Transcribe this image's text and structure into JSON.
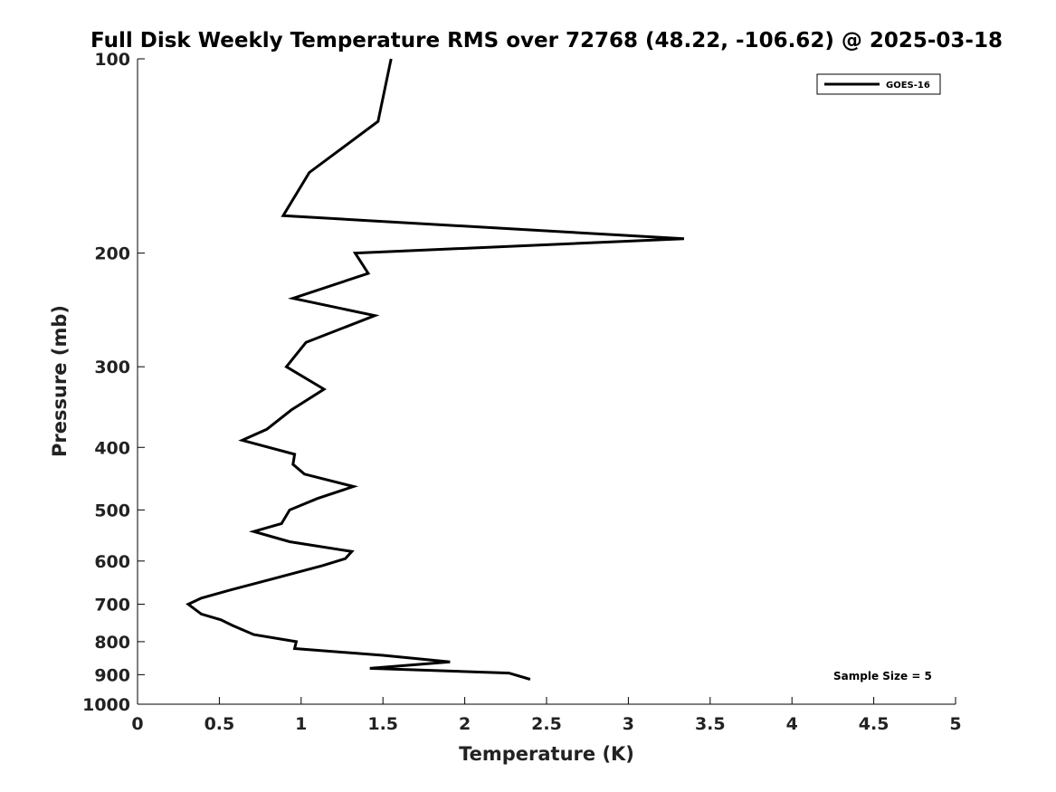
{
  "chart_data": {
    "type": "line",
    "title": "Full Disk Weekly Temperature RMS over 72768 (48.22, -106.62) @ 2025-03-18",
    "xlabel": "Temperature (K)",
    "ylabel": "Pressure (mb)",
    "xlim": [
      0,
      5
    ],
    "ylim": [
      100,
      1000
    ],
    "y_scale": "log",
    "y_reversed": true,
    "x_ticks": [
      "0",
      "0.5",
      "1",
      "1.5",
      "2",
      "2.5",
      "3",
      "3.5",
      "4",
      "4.5",
      "5"
    ],
    "y_ticks": [
      "100",
      "200",
      "300",
      "400",
      "500",
      "600",
      "700",
      "800",
      "900",
      "1000"
    ],
    "grid": false,
    "legend_position": "top-right",
    "series": [
      {
        "name": "GOES-16",
        "color": "#000000",
        "points": [
          [
            1.55,
            100
          ],
          [
            1.47,
            125
          ],
          [
            1.05,
            150
          ],
          [
            0.89,
            175
          ],
          [
            3.34,
            190
          ],
          [
            1.33,
            200
          ],
          [
            1.41,
            215
          ],
          [
            0.95,
            235
          ],
          [
            1.45,
            250
          ],
          [
            1.03,
            275
          ],
          [
            0.91,
            300
          ],
          [
            1.14,
            325
          ],
          [
            0.94,
            350
          ],
          [
            0.79,
            375
          ],
          [
            0.64,
            390
          ],
          [
            0.96,
            410
          ],
          [
            0.95,
            425
          ],
          [
            1.02,
            440
          ],
          [
            1.32,
            460
          ],
          [
            1.1,
            480
          ],
          [
            0.93,
            500
          ],
          [
            0.88,
            525
          ],
          [
            0.71,
            540
          ],
          [
            0.93,
            560
          ],
          [
            1.31,
            580
          ],
          [
            1.27,
            595
          ],
          [
            1.13,
            610
          ],
          [
            0.82,
            640
          ],
          [
            0.57,
            665
          ],
          [
            0.39,
            685
          ],
          [
            0.31,
            700
          ],
          [
            0.39,
            725
          ],
          [
            0.51,
            740
          ],
          [
            0.58,
            755
          ],
          [
            0.71,
            780
          ],
          [
            0.97,
            800
          ],
          [
            0.96,
            820
          ],
          [
            1.5,
            840
          ],
          [
            1.91,
            860
          ],
          [
            1.42,
            880
          ],
          [
            2.27,
            895
          ],
          [
            2.4,
            915
          ]
        ]
      }
    ],
    "annotation": "Sample Size = 5"
  }
}
